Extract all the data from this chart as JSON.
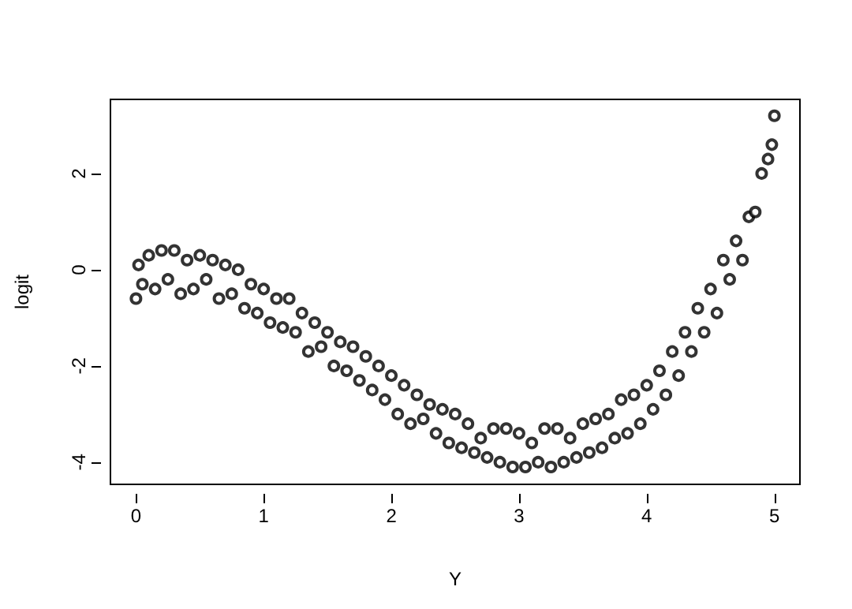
{
  "chart_data": {
    "type": "scatter",
    "xlabel": "Y",
    "ylabel": "logit",
    "marker": "circle",
    "grid": false,
    "xlim": [
      -0.2,
      5.2
    ],
    "xticks": [
      0,
      1,
      2,
      3,
      4,
      5
    ],
    "ylim": [
      -4.46,
      3.54
    ],
    "yticks": [
      -4,
      -2,
      0,
      2
    ],
    "series": [
      {
        "color": "#000000",
        "x": [
          0,
          0.02,
          0.05,
          0.1,
          0.15,
          0.2,
          0.25,
          0.3,
          0.35,
          0.4,
          0.45,
          0.5,
          0.55,
          0.6,
          0.65,
          0.7,
          0.75,
          0.8,
          0.85,
          0.9,
          0.95,
          1,
          1.05,
          1.1,
          1.15,
          1.2,
          1.25,
          1.3,
          1.35,
          1.4,
          1.45,
          1.5,
          1.55,
          1.6,
          1.65,
          1.7,
          1.75,
          1.8,
          1.85,
          1.9,
          1.95,
          2,
          2.05,
          2.1,
          2.15,
          2.2,
          2.25,
          2.3,
          2.35,
          2.4,
          2.45,
          2.5,
          2.55,
          2.6,
          2.65,
          2.7,
          2.75,
          2.8,
          2.85,
          2.9,
          2.95,
          3,
          3.05,
          3.1,
          3.15,
          3.2,
          3.25,
          3.3,
          3.35,
          3.4,
          3.45,
          3.5,
          3.55,
          3.6,
          3.65,
          3.7,
          3.75,
          3.8,
          3.85,
          3.9,
          3.95,
          4,
          4.05,
          4.1,
          4.15,
          4.2,
          4.25,
          4.3,
          4.35,
          4.4,
          4.45,
          4.5,
          4.55,
          4.6,
          4.65,
          4.7,
          4.75,
          4.8,
          4.85,
          4.9,
          4.95,
          5,
          4.98
        ],
        "values": [
          -0.6,
          0.1,
          -0.3,
          0.3,
          -0.4,
          0.4,
          -0.2,
          0.4,
          -0.5,
          0.2,
          -0.4,
          0.3,
          -0.2,
          0.2,
          -0.6,
          0.1,
          -0.5,
          0,
          -0.8,
          -0.3,
          -0.9,
          -0.4,
          -1.1,
          -0.6,
          -1.2,
          -0.6,
          -1.3,
          -0.9,
          -1.7,
          -1.1,
          -1.6,
          -1.3,
          -2,
          -1.5,
          -2.1,
          -1.6,
          -2.3,
          -1.8,
          -2.5,
          -2,
          -2.7,
          -2.2,
          -3,
          -2.4,
          -3.2,
          -2.6,
          -3.1,
          -2.8,
          -3.4,
          -2.9,
          -3.6,
          -3,
          -3.7,
          -3.2,
          -3.8,
          -3.5,
          -3.9,
          -3.3,
          -4,
          -3.3,
          -4.1,
          -3.4,
          -4.1,
          -3.6,
          -4,
          -3.3,
          -4.1,
          -3.3,
          -4,
          -3.5,
          -3.9,
          -3.2,
          -3.8,
          -3.1,
          -3.7,
          -3,
          -3.5,
          -2.7,
          -3.4,
          -2.6,
          -3.2,
          -2.4,
          -2.9,
          -2.1,
          -2.6,
          -1.7,
          -2.2,
          -1.3,
          -1.7,
          -0.8,
          -1.3,
          -0.4,
          -0.9,
          0.2,
          -0.2,
          0.6,
          0.2,
          1.1,
          1.2,
          2,
          2.3,
          3.2,
          2.6
        ]
      }
    ]
  }
}
